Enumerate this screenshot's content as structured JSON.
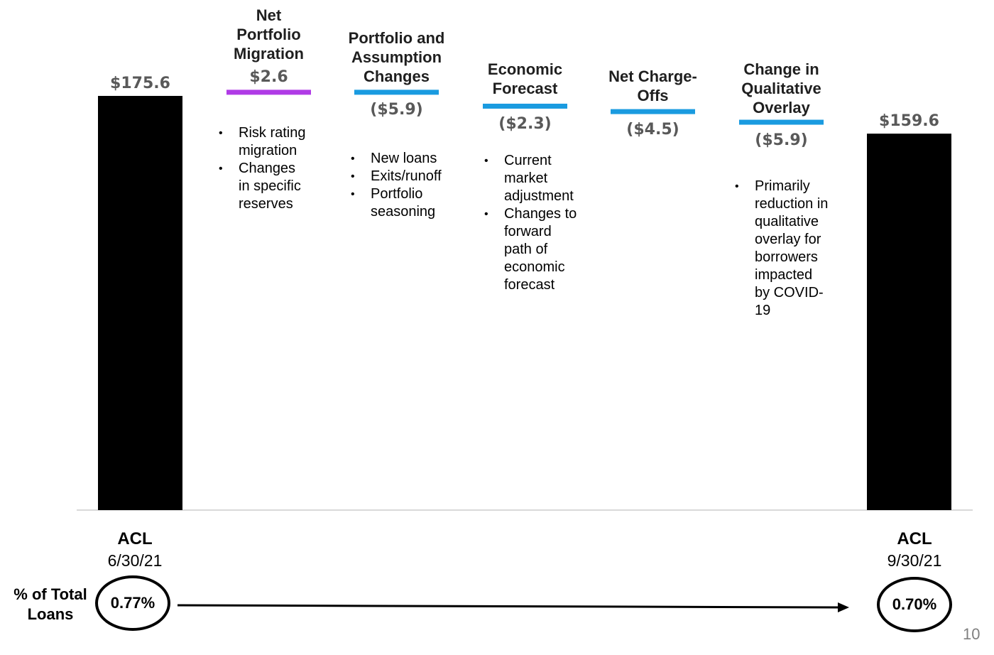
{
  "chart_data": {
    "type": "bar",
    "subtype": "waterfall",
    "categories": [
      "ACL 6/30/21",
      "Net Portfolio Migration",
      "Portfolio and Assumption Changes",
      "Economic Forecast",
      "Net Charge-Offs",
      "Change in Qualitative Overlay",
      "ACL 9/30/21"
    ],
    "values": [
      175.6,
      2.6,
      -5.9,
      -2.3,
      -4.5,
      -5.9,
      159.6
    ],
    "value_labels": [
      "$175.6",
      "$2.6",
      "($5.9)",
      "($2.3)",
      "($4.5)",
      "($5.9)",
      "$159.6"
    ],
    "colors": {
      "total": "#000000",
      "increase": "#b03be6",
      "decrease": "#1a9be0",
      "value_text": "#595959",
      "axis": "#d9d9d9"
    },
    "steps": [
      {
        "title_lines": [
          "Net",
          "Portfolio",
          "Migration"
        ],
        "bullets": [
          [
            "Risk rating",
            "migration"
          ],
          [
            "Changes",
            "in specific",
            "reserves"
          ]
        ]
      },
      {
        "title_lines": [
          "Portfolio and",
          "Assumption",
          "Changes"
        ],
        "bullets": [
          [
            "New loans"
          ],
          [
            "Exits/runoff"
          ],
          [
            "Portfolio",
            "seasoning"
          ]
        ]
      },
      {
        "title_lines": [
          "Economic",
          "Forecast"
        ],
        "bullets": [
          [
            "Current",
            "market",
            "adjustment"
          ],
          [
            "Changes to",
            "forward",
            "path of",
            "economic",
            "forecast"
          ]
        ]
      },
      {
        "title_lines": [
          "Net Charge-",
          "Offs"
        ],
        "bullets": []
      },
      {
        "title_lines": [
          "Change in",
          "Qualitative",
          "Overlay"
        ],
        "bullets": [
          [
            "Primarily",
            "reduction in",
            "qualitative",
            "overlay for",
            "borrowers",
            "impacted",
            "by COVID-",
            "19"
          ]
        ]
      }
    ],
    "start_label": {
      "title": "ACL",
      "date": "6/30/21"
    },
    "end_label": {
      "title": "ACL",
      "date": "9/30/21"
    },
    "ratio": {
      "label_lines": [
        "% of Total",
        "Loans"
      ],
      "start": "0.77%",
      "end": "0.70%"
    }
  },
  "page_number": "10"
}
